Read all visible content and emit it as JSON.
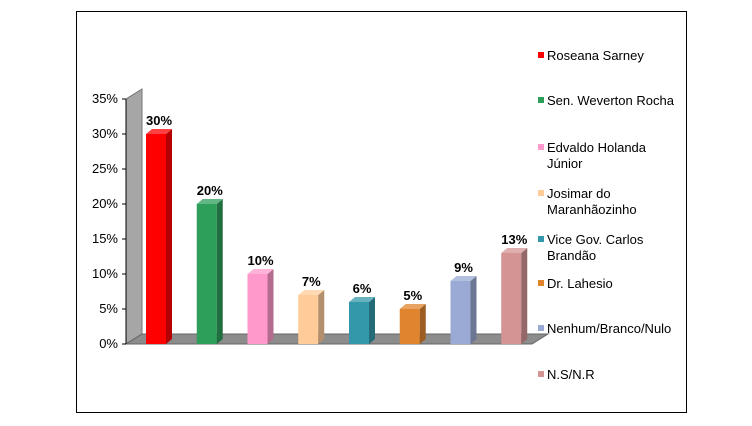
{
  "chart_data": {
    "type": "bar",
    "title": "",
    "xlabel": "",
    "ylabel": "",
    "ylim": [
      0,
      35
    ],
    "yticks": [
      "0%",
      "5%",
      "10%",
      "15%",
      "20%",
      "25%",
      "30%",
      "35%"
    ],
    "grid": false,
    "legend_position": "right",
    "categories": [
      "Roseana Sarney",
      "Sen. Weverton Rocha",
      "Edvaldo Holanda Júnior",
      "Josimar do Maranhãozinho",
      "Vice Gov. Carlos Brandão",
      "Dr. Lahesio",
      "Nenhum/Branco/Nulo",
      "N.S/N.R"
    ],
    "legend_lines": [
      [
        "Roseana Sarney"
      ],
      [
        "Sen. Weverton Rocha"
      ],
      [
        "Edvaldo Holanda",
        "Júnior"
      ],
      [
        "Josimar do",
        "Maranhãozinho"
      ],
      [
        "Vice Gov. Carlos",
        "Brandão"
      ],
      [
        "Dr. Lahesio"
      ],
      [
        "Nenhum/Branco/Nulo"
      ],
      [
        "N.S/N.R"
      ]
    ],
    "values": [
      30,
      20,
      10,
      7,
      6,
      5,
      9,
      13
    ],
    "data_labels": [
      "30%",
      "20%",
      "10%",
      "7%",
      "6%",
      "5%",
      "9%",
      "13%"
    ],
    "colors": [
      "#ff0000",
      "#2e9e5b",
      "#ff99cc",
      "#ffcc99",
      "#3399aa",
      "#e0842e",
      "#9aaad4",
      "#d49494"
    ],
    "wall_color": "#a6a6a6"
  }
}
